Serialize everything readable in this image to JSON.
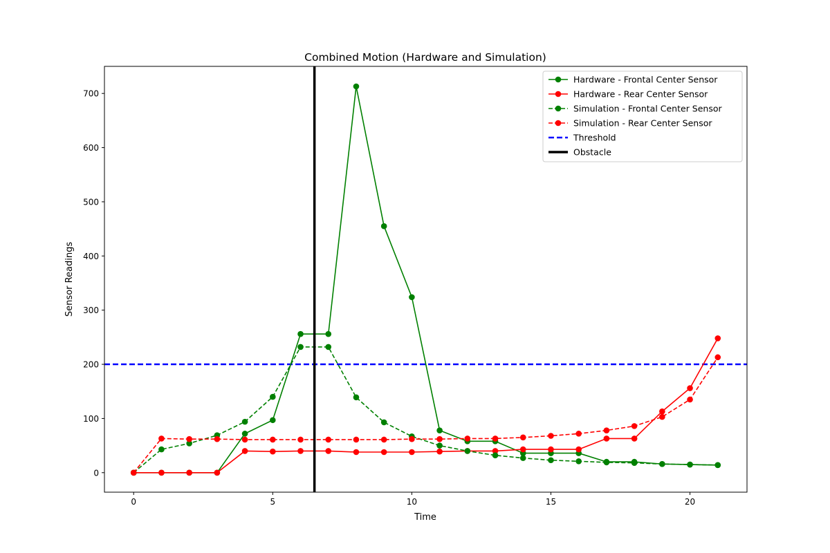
{
  "chart_data": {
    "type": "line",
    "title": "Combined Motion (Hardware and Simulation)",
    "xlabel": "Time",
    "ylabel": "Sensor Readings",
    "xlim": [
      -1.05,
      22.05
    ],
    "ylim": [
      -36,
      750
    ],
    "xticks": [
      0,
      5,
      10,
      15,
      20
    ],
    "yticks": [
      0,
      100,
      200,
      300,
      400,
      500,
      600,
      700
    ],
    "grid": false,
    "legend_position": "top-right",
    "x": [
      0,
      1,
      2,
      3,
      4,
      5,
      6,
      7,
      8,
      9,
      10,
      11,
      12,
      13,
      14,
      15,
      16,
      17,
      18,
      19,
      20,
      21
    ],
    "series": [
      {
        "name": "Hardware - Frontal Center Sensor",
        "color": "#008000",
        "style": "solid",
        "marker": "circle",
        "values": [
          0,
          0,
          0,
          0,
          72,
          97,
          256,
          256,
          713,
          455,
          324,
          78,
          58,
          58,
          36,
          36,
          36,
          20,
          20,
          16,
          15,
          14
        ]
      },
      {
        "name": "Hardware - Rear Center Sensor",
        "color": "#ff0000",
        "style": "solid",
        "marker": "circle",
        "values": [
          0,
          0,
          0,
          0,
          40,
          39,
          40,
          40,
          38,
          38,
          38,
          39,
          40,
          40,
          43,
          43,
          43,
          63,
          63,
          113,
          156,
          248
        ]
      },
      {
        "name": "Simulation - Frontal Center Sensor",
        "color": "#008000",
        "style": "dashed",
        "marker": "circle",
        "values": [
          0,
          43,
          54,
          69,
          94,
          140,
          232,
          232,
          139,
          93,
          67,
          50,
          40,
          32,
          27,
          23,
          21,
          19,
          18,
          16,
          15,
          14
        ]
      },
      {
        "name": "Simulation - Rear Center Sensor",
        "color": "#ff0000",
        "style": "dashed",
        "marker": "circle",
        "values": [
          0,
          63,
          62,
          62,
          61,
          61,
          61,
          61,
          61,
          61,
          62,
          62,
          63,
          63,
          65,
          68,
          72,
          78,
          86,
          103,
          135,
          213
        ]
      }
    ],
    "threshold": {
      "name": "Threshold",
      "y": 200,
      "color": "#0000ff",
      "style": "dashed"
    },
    "obstacle": {
      "name": "Obstacle",
      "x": 6.5,
      "color": "#000000",
      "style": "solid"
    }
  }
}
